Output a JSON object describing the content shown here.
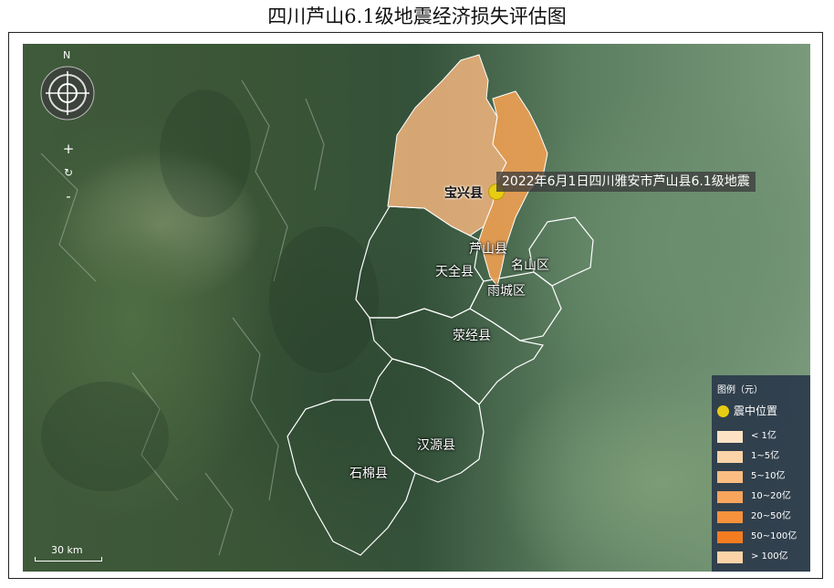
{
  "title": "四川芦山6.1级地震经济损失评估图",
  "map": {
    "compass_label": "N",
    "zoom_in": "+",
    "reset": "↻",
    "zoom_out": "-",
    "scale_label": "30 km",
    "quake_callout": "2022年6月1日四川雅安市芦山县6.1级地震",
    "labels": {
      "baoxing": "宝兴县",
      "lushan": "芦山县",
      "tianquan": "天全县",
      "mingshan": "名山区",
      "yucheng": "雨城区",
      "yingjing": "荥经县",
      "hanyuan": "汉源县",
      "shimian": "石棉县"
    },
    "colors": {
      "baoxing_fill": "#f2b57e",
      "lushan_fill": "#f0a053",
      "boundary": "#ffffff",
      "quake_marker": "#e6cc12"
    }
  },
  "legend": {
    "title": "图例（元）",
    "quake_label": "震中位置",
    "items": [
      {
        "label": "< 1亿",
        "color": "#fde3c4"
      },
      {
        "label": "1~5亿",
        "color": "#fdd3a8"
      },
      {
        "label": "5~10亿",
        "color": "#fcbd82"
      },
      {
        "label": "10~20亿",
        "color": "#f9a55c"
      },
      {
        "label": "20~50亿",
        "color": "#f7913c"
      },
      {
        "label": "50~100亿",
        "color": "#f47c20"
      },
      {
        "label": "> 100亿",
        "color": "#fdd3a8"
      }
    ]
  }
}
